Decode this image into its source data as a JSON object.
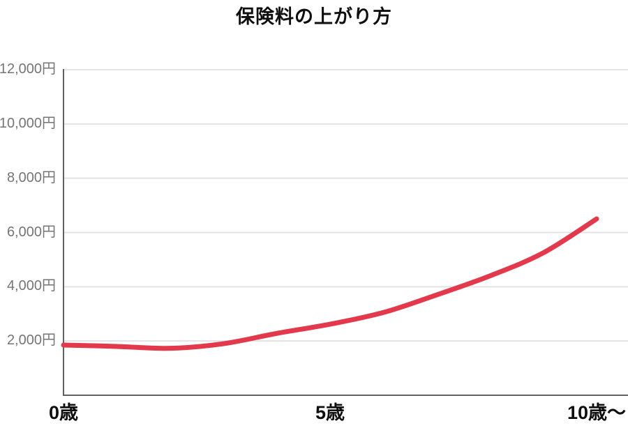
{
  "colors": {
    "background": "#ffffff",
    "line": "#e23a4c",
    "grid": "#e3e3e3",
    "axis": "#616161",
    "y_tick_label": "#757575",
    "x_tick_label": "#0f0f0f",
    "title": "#0f0f0f"
  },
  "chart_data": {
    "type": "line",
    "title": "保険料の上がり方",
    "xlabel": "",
    "ylabel": "",
    "x": [
      0,
      1,
      2,
      3,
      4,
      5,
      6,
      7,
      8,
      9,
      10
    ],
    "series": [
      {
        "name": "保険料",
        "values": [
          1850,
          1800,
          1730,
          1900,
          2280,
          2620,
          3050,
          3700,
          4400,
          5250,
          6500
        ]
      }
    ],
    "yticks": [
      {
        "value": 2000,
        "label": "2,000円"
      },
      {
        "value": 4000,
        "label": "4,000円"
      },
      {
        "value": 6000,
        "label": "6,000円"
      },
      {
        "value": 8000,
        "label": "8,000円"
      },
      {
        "value": 10000,
        "label": "10,000円"
      },
      {
        "value": 12000,
        "label": "12,000円"
      }
    ],
    "xticks": [
      {
        "value": 0,
        "label": "0歳"
      },
      {
        "value": 5,
        "label": "5歳"
      },
      {
        "value": 10,
        "label": "10歳～"
      }
    ],
    "ylim": [
      0,
      12000
    ],
    "xlim": [
      0,
      10.6
    ],
    "grid": "horizontal",
    "legend_position": "none"
  }
}
